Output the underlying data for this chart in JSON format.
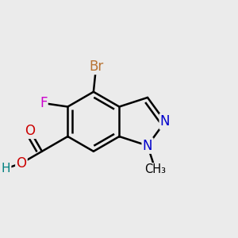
{
  "bg_color": "#ebebeb",
  "bond_color": "#000000",
  "bond_width": 1.8,
  "atom_colors": {
    "C": "#000000",
    "N": "#0000cc",
    "O": "#cc0000",
    "F": "#cc00cc",
    "Br": "#b87333",
    "H": "#008080"
  },
  "font_size": 12,
  "dbo": 0.018
}
